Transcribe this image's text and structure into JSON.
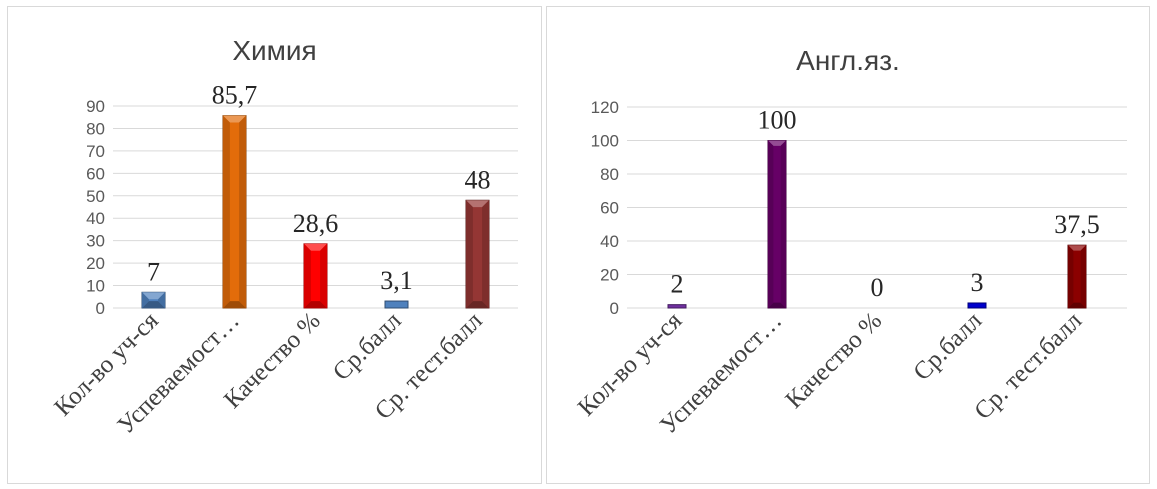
{
  "chart_data": [
    {
      "type": "bar",
      "title": "Химия",
      "categories": [
        "Кол-во уч-ся",
        "Успеваемост…",
        "Качество %",
        "Ср.балл",
        "Ср. тест.балл"
      ],
      "values": [
        7,
        85.7,
        28.6,
        3.1,
        48
      ],
      "data_labels": [
        "7",
        "85,7",
        "28,6",
        "3,1",
        "48"
      ],
      "bar_colors": [
        "#4F81BD",
        "#E36C0A",
        "#FF0000",
        "#4F81BD",
        "#943634"
      ],
      "ylim": [
        0,
        90
      ],
      "yticks": [
        0,
        10,
        20,
        30,
        40,
        50,
        60,
        70,
        80,
        90
      ],
      "grid": true,
      "legend": "none"
    },
    {
      "type": "bar",
      "title": "Англ.яз.",
      "categories": [
        "Кол-во уч-ся",
        "Успеваемост…",
        "Качество %",
        "Ср.балл",
        "Ср. тест.балл"
      ],
      "values": [
        2,
        100,
        0,
        3,
        37.5
      ],
      "data_labels": [
        "2",
        "100",
        "0",
        "3",
        "37,5"
      ],
      "bar_colors": [
        "#7030A0",
        "#660066",
        "#7030A0",
        "#0000CC",
        "#8B0000"
      ],
      "ylim": [
        0,
        120
      ],
      "yticks": [
        0,
        20,
        40,
        60,
        80,
        100,
        120
      ],
      "grid": true,
      "legend": "none"
    }
  ]
}
